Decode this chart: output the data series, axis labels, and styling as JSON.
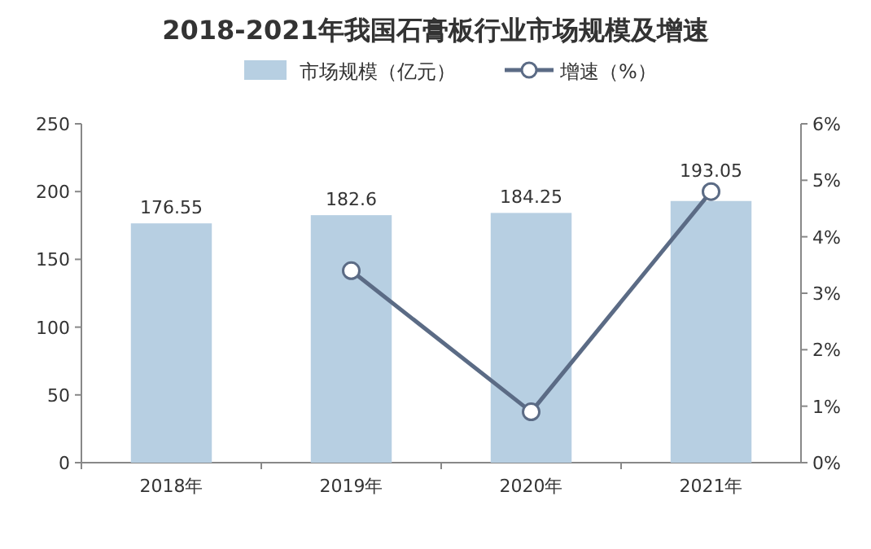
{
  "chart_data": {
    "type": "bar",
    "title": "2018-2021年我国石膏板行业市场规模及增速",
    "categories": [
      "2018年",
      "2019年",
      "2020年",
      "2021年"
    ],
    "series": [
      {
        "name": "市场规模（亿元）",
        "color": "#b7cfe2",
        "values": [
          176.55,
          182.6,
          184.25,
          193.05
        ],
        "value_labels": [
          "176.55",
          "182.6",
          "184.25",
          "193.05"
        ]
      },
      {
        "name": "增速（%）",
        "type": "line",
        "axis": "y2",
        "color": "#5b6b85",
        "marker": "circle",
        "values": [
          null,
          3.4,
          0.9,
          4.8
        ]
      }
    ],
    "ylim": [
      0,
      250
    ],
    "yticks": [
      0,
      50,
      100,
      150,
      200,
      250
    ],
    "y2lim": [
      0,
      6
    ],
    "y2ticks": [
      {
        "value": 0,
        "label": "0%"
      },
      {
        "value": 1,
        "label": "1%"
      },
      {
        "value": 2,
        "label": "2%"
      },
      {
        "value": 3,
        "label": "3%"
      },
      {
        "value": 4,
        "label": "4%"
      },
      {
        "value": 5,
        "label": "5%"
      },
      {
        "value": 6,
        "label": "6%"
      }
    ],
    "legend": "top",
    "grid": false
  }
}
